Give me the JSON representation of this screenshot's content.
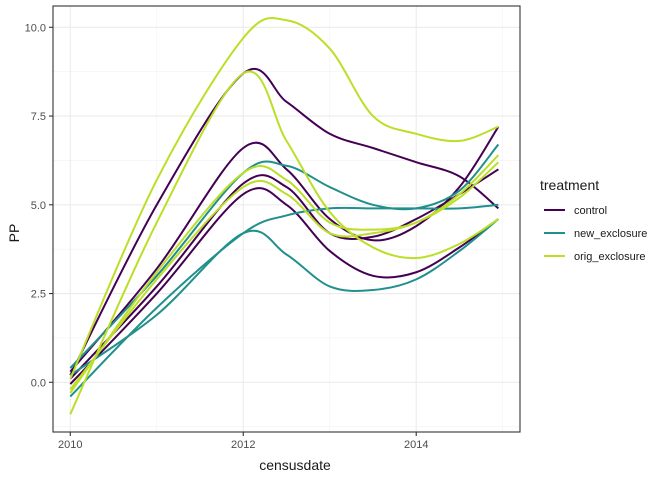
{
  "chart_data": {
    "type": "line",
    "xlabel": "censusdate",
    "ylabel": "PP",
    "xlim": [
      2009.8,
      2015.2
    ],
    "ylim": [
      -1.4,
      10.6
    ],
    "x_ticks": [
      2010,
      2012,
      2014
    ],
    "x_tick_labels": [
      "2010",
      "2012",
      "2014"
    ],
    "y_ticks": [
      0.0,
      2.5,
      5.0,
      7.5,
      10.0
    ],
    "y_tick_labels": [
      "0.0",
      "2.5",
      "5.0",
      "7.5",
      "10.0"
    ],
    "grid": true,
    "legend": {
      "title": "treatment",
      "position": "right",
      "entries": [
        {
          "label": "control",
          "color": "#440154"
        },
        {
          "label": "new_exclosure",
          "color": "#21908C"
        },
        {
          "label": "orig_exclosure",
          "color": "#BBDF27"
        }
      ]
    },
    "series": [
      {
        "treatment": "control",
        "color": "#440154",
        "x": [
          2010.0,
          2011.0,
          2012.0,
          2012.5,
          2013.0,
          2013.5,
          2014.0,
          2014.5,
          2014.95
        ],
        "y": [
          0.2,
          5.0,
          8.7,
          7.9,
          7.0,
          6.6,
          6.2,
          5.8,
          4.9
        ]
      },
      {
        "treatment": "control",
        "color": "#440154",
        "x": [
          2010.0,
          2011.0,
          2012.0,
          2012.5,
          2013.0,
          2013.5,
          2014.0,
          2014.5,
          2014.95
        ],
        "y": [
          0.3,
          3.2,
          6.6,
          6.0,
          4.6,
          4.0,
          4.4,
          5.5,
          7.2
        ]
      },
      {
        "treatment": "control",
        "color": "#440154",
        "x": [
          2010.0,
          2011.0,
          2012.0,
          2012.5,
          2013.0,
          2013.5,
          2014.0,
          2014.5,
          2014.95
        ],
        "y": [
          0.1,
          2.7,
          5.6,
          5.5,
          4.2,
          4.1,
          4.6,
          5.3,
          6.0
        ]
      },
      {
        "treatment": "control",
        "color": "#440154",
        "x": [
          2010.0,
          2011.0,
          2012.0,
          2012.5,
          2013.0,
          2013.5,
          2014.0,
          2014.5,
          2014.95
        ],
        "y": [
          -0.05,
          2.5,
          5.3,
          5.0,
          3.7,
          3.0,
          3.1,
          3.8,
          4.6
        ]
      },
      {
        "treatment": "new_exclosure",
        "color": "#21908C",
        "x": [
          2010.0,
          2011.0,
          2012.0,
          2012.5,
          2013.0,
          2013.5,
          2014.0,
          2014.5,
          2014.95
        ],
        "y": [
          0.4,
          3.0,
          5.9,
          6.1,
          5.5,
          5.0,
          4.9,
          5.4,
          6.7
        ]
      },
      {
        "treatment": "new_exclosure",
        "color": "#21908C",
        "x": [
          2010.0,
          2011.0,
          2012.0,
          2012.5,
          2013.0,
          2013.5,
          2014.0,
          2014.5,
          2014.95
        ],
        "y": [
          -0.4,
          2.1,
          4.2,
          4.7,
          4.9,
          4.9,
          4.9,
          4.9,
          5.0
        ]
      },
      {
        "treatment": "new_exclosure",
        "color": "#21908C",
        "x": [
          2010.0,
          2011.0,
          2012.0,
          2012.5,
          2013.0,
          2013.5,
          2014.0,
          2014.5,
          2014.95
        ],
        "y": [
          0.2,
          1.9,
          4.2,
          3.6,
          2.7,
          2.6,
          2.9,
          3.7,
          4.6
        ]
      },
      {
        "treatment": "orig_exclosure",
        "color": "#BBDF27",
        "x": [
          2010.0,
          2011.0,
          2012.0,
          2012.5,
          2013.0,
          2013.5,
          2014.0,
          2014.5,
          2014.95
        ],
        "y": [
          0.1,
          5.7,
          9.7,
          10.2,
          9.4,
          7.5,
          7.0,
          6.8,
          7.2
        ]
      },
      {
        "treatment": "orig_exclosure",
        "color": "#BBDF27",
        "x": [
          2010.0,
          2011.0,
          2012.0,
          2012.5,
          2013.0,
          2013.5,
          2014.0,
          2014.5,
          2014.95
        ],
        "y": [
          -0.9,
          4.5,
          8.7,
          6.8,
          4.8,
          3.8,
          3.5,
          3.9,
          4.6
        ]
      },
      {
        "treatment": "orig_exclosure",
        "color": "#BBDF27",
        "x": [
          2010.0,
          2011.0,
          2012.0,
          2012.5,
          2013.0,
          2013.5,
          2014.0,
          2014.5,
          2014.95
        ],
        "y": [
          -0.3,
          3.1,
          5.9,
          5.7,
          4.5,
          4.3,
          4.5,
          5.3,
          6.4
        ]
      },
      {
        "treatment": "orig_exclosure",
        "color": "#BBDF27",
        "x": [
          2010.0,
          2011.0,
          2012.0,
          2012.5,
          2013.0,
          2013.5,
          2014.0,
          2014.5,
          2014.95
        ],
        "y": [
          -0.2,
          2.9,
          5.5,
          5.3,
          4.2,
          4.2,
          4.5,
          5.2,
          6.2
        ]
      }
    ]
  }
}
